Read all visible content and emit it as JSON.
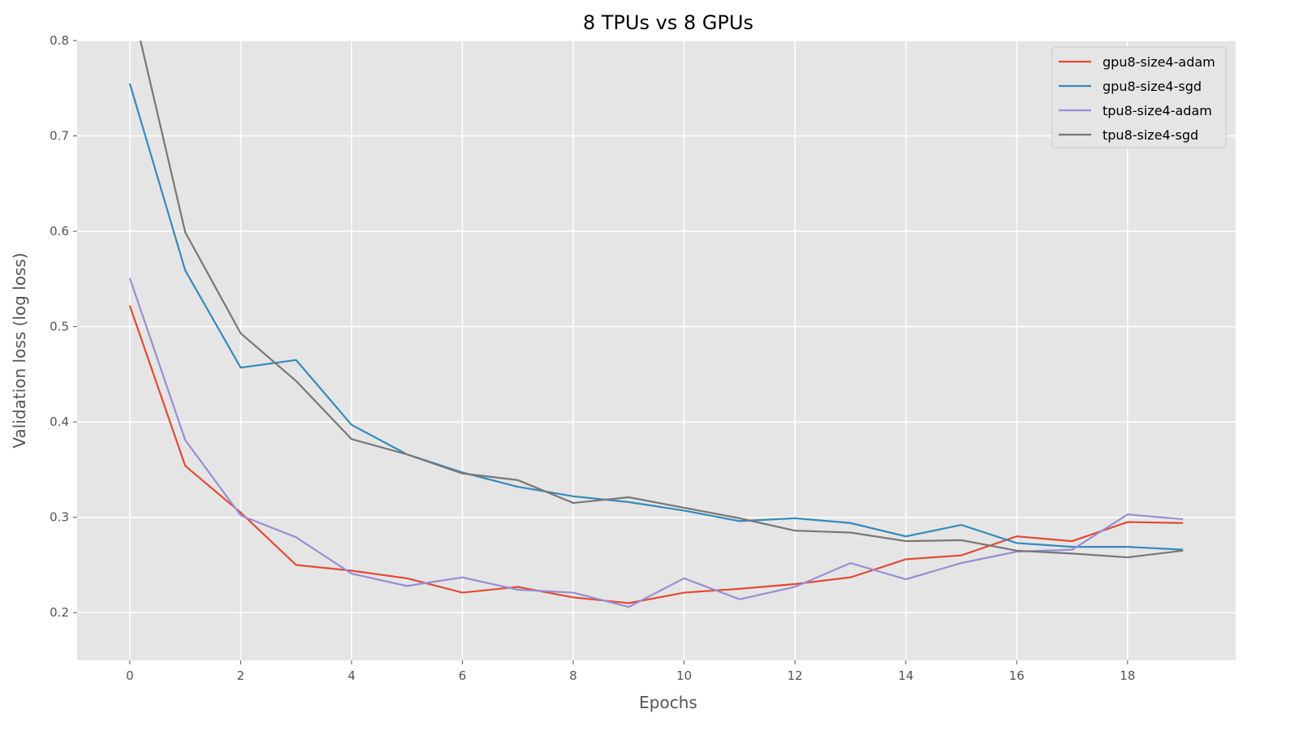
{
  "chart_data": {
    "type": "line",
    "title": "8 TPUs vs 8 GPUs",
    "xlabel": "Epochs",
    "ylabel": "Validation loss (log loss)",
    "xlim": [
      -0.95,
      19.95
    ],
    "ylim": [
      0.15,
      0.8
    ],
    "xticks": [
      0,
      2,
      4,
      6,
      8,
      10,
      12,
      14,
      16,
      18
    ],
    "yticks": [
      0.2,
      0.3,
      0.4,
      0.5,
      0.6,
      0.7,
      0.8
    ],
    "ytick_labels": [
      "0.2",
      "0.3",
      "0.4",
      "0.5",
      "0.6",
      "0.7",
      "0.8"
    ],
    "grid": true,
    "legend_position": "top-right",
    "x": [
      0,
      1,
      2,
      3,
      4,
      5,
      6,
      7,
      8,
      9,
      10,
      11,
      12,
      13,
      14,
      15,
      16,
      17,
      18,
      19
    ],
    "series": [
      {
        "name": "gpu8-size4-adam",
        "color": "#E24A33",
        "values": [
          0.522,
          0.354,
          0.305,
          0.25,
          0.244,
          0.236,
          0.221,
          0.227,
          0.216,
          0.21,
          0.221,
          0.225,
          0.23,
          0.237,
          0.256,
          0.26,
          0.28,
          0.275,
          0.295,
          0.294
        ]
      },
      {
        "name": "gpu8-size4-sgd",
        "color": "#348ABD",
        "values": [
          0.755,
          0.559,
          0.457,
          0.465,
          0.397,
          0.366,
          0.347,
          0.332,
          0.322,
          0.316,
          0.307,
          0.296,
          0.299,
          0.294,
          0.28,
          0.292,
          0.273,
          0.269,
          0.269,
          0.266
        ]
      },
      {
        "name": "tpu8-size4-adam",
        "color": "#988ED5",
        "values": [
          0.551,
          0.381,
          0.302,
          0.279,
          0.241,
          0.228,
          0.237,
          0.224,
          0.221,
          0.206,
          0.236,
          0.214,
          0.227,
          0.252,
          0.235,
          0.252,
          0.264,
          0.266,
          0.303,
          0.298
        ]
      },
      {
        "name": "tpu8-size4-sgd",
        "color": "#777777",
        "values": [
          0.848,
          0.599,
          0.493,
          0.443,
          0.382,
          0.366,
          0.346,
          0.339,
          0.315,
          0.321,
          0.31,
          0.299,
          0.286,
          0.284,
          0.275,
          0.276,
          0.265,
          0.262,
          0.258,
          0.265
        ]
      }
    ]
  }
}
